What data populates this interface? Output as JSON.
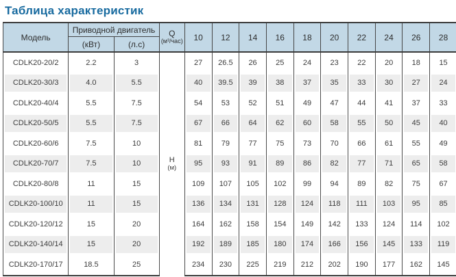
{
  "page_title": "Таблица характеристик",
  "colors": {
    "title_text": "#176a9f",
    "header_background": "#c2d8e6",
    "stripe_background": "#ededed",
    "border": "#454545"
  },
  "table": {
    "headers": {
      "model": "Модель",
      "motor_group": "Приводной двигатель",
      "motor_kw": "(кВт)",
      "motor_hp": "(л.с)",
      "q_label": "Q",
      "q_unit": "(м³/час)",
      "h_label": "H",
      "h_unit": "(м)",
      "flow_values": [
        "10",
        "12",
        "14",
        "16",
        "18",
        "20",
        "22",
        "24",
        "26",
        "28"
      ]
    },
    "rows": [
      {
        "model": "CDLK20-20/2",
        "kw": "2.2",
        "hp": "3",
        "head": [
          "27",
          "26.5",
          "26",
          "25",
          "24",
          "23",
          "22",
          "20",
          "18",
          "15"
        ]
      },
      {
        "model": "CDLK20-30/3",
        "kw": "4.0",
        "hp": "5.5",
        "head": [
          "40",
          "39.5",
          "39",
          "38",
          "37",
          "35",
          "33",
          "30",
          "27",
          "24"
        ]
      },
      {
        "model": "CDLK20-40/4",
        "kw": "5.5",
        "hp": "7.5",
        "head": [
          "54",
          "53",
          "52",
          "51",
          "49",
          "47",
          "44",
          "41",
          "37",
          "33"
        ]
      },
      {
        "model": "CDLK20-50/5",
        "kw": "5.5",
        "hp": "7.5",
        "head": [
          "67",
          "66",
          "64",
          "62",
          "60",
          "58",
          "55",
          "50",
          "45",
          "40"
        ]
      },
      {
        "model": "CDLK20-60/6",
        "kw": "7.5",
        "hp": "10",
        "head": [
          "81",
          "79",
          "77",
          "75",
          "73",
          "70",
          "66",
          "61",
          "55",
          "49"
        ]
      },
      {
        "model": "CDLK20-70/7",
        "kw": "7.5",
        "hp": "10",
        "head": [
          "95",
          "93",
          "91",
          "89",
          "86",
          "82",
          "77",
          "71",
          "65",
          "58"
        ]
      },
      {
        "model": "CDLK20-80/8",
        "kw": "11",
        "hp": "15",
        "head": [
          "109",
          "107",
          "105",
          "102",
          "99",
          "94",
          "89",
          "82",
          "75",
          "67"
        ]
      },
      {
        "model": "CDLK20-100/10",
        "kw": "11",
        "hp": "15",
        "head": [
          "136",
          "134",
          "131",
          "128",
          "124",
          "118",
          "111",
          "103",
          "95",
          "85"
        ]
      },
      {
        "model": "CDLK20-120/12",
        "kw": "15",
        "hp": "20",
        "head": [
          "164",
          "162",
          "158",
          "154",
          "149",
          "142",
          "133",
          "124",
          "114",
          "102"
        ]
      },
      {
        "model": "CDLK20-140/14",
        "kw": "15",
        "hp": "20",
        "head": [
          "192",
          "189",
          "185",
          "180",
          "174",
          "166",
          "156",
          "145",
          "133",
          "119"
        ]
      },
      {
        "model": "CDLK20-170/17",
        "kw": "18.5",
        "hp": "25",
        "head": [
          "234",
          "230",
          "225",
          "219",
          "212",
          "202",
          "190",
          "177",
          "162",
          "145"
        ]
      }
    ]
  }
}
